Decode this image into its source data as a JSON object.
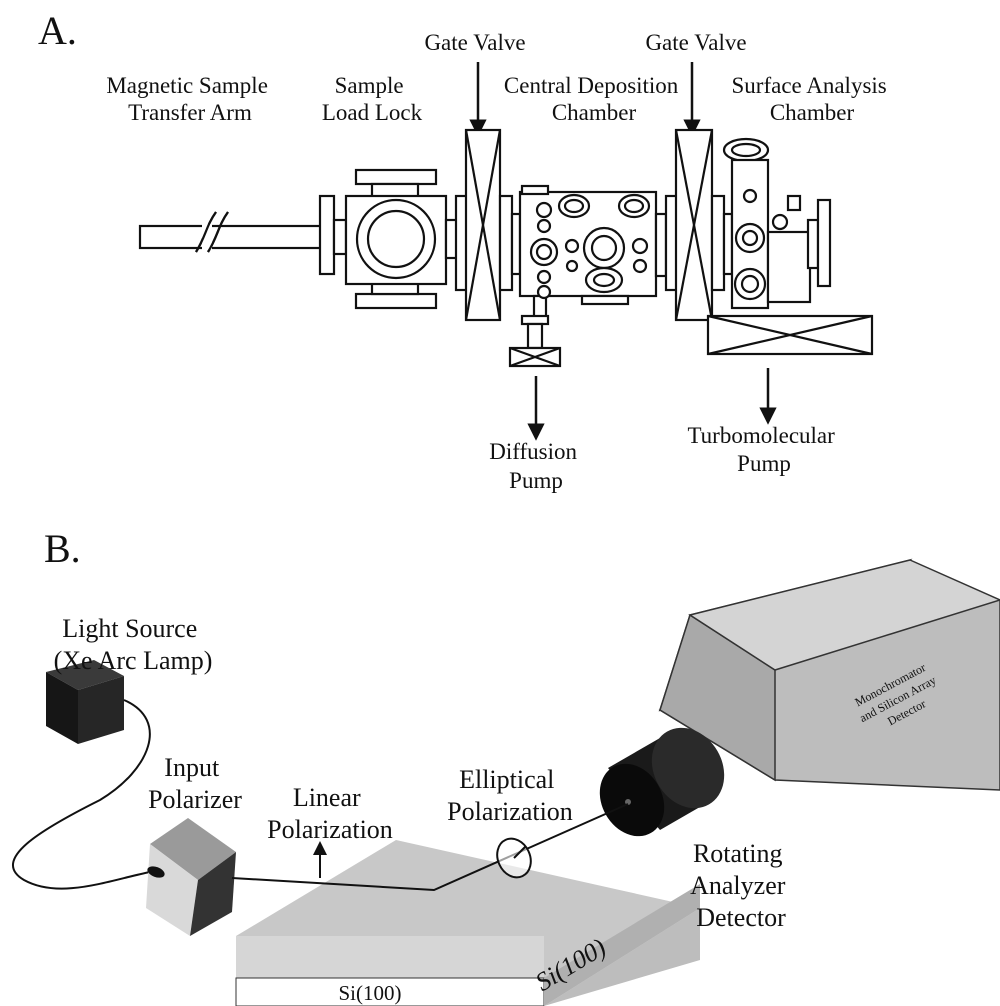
{
  "panel_a": {
    "letter": "A.",
    "labels": {
      "transfer_arm": [
        "Magnetic Sample",
        "Transfer Arm"
      ],
      "load_lock": [
        "Sample",
        "Load Lock"
      ],
      "gate_valve_1": [
        "Gate Valve"
      ],
      "deposition": [
        "Central Deposition",
        "Chamber"
      ],
      "gate_valve_2": [
        "Gate Valve"
      ],
      "analysis": [
        "Surface Analysis",
        "Chamber"
      ],
      "diffusion": [
        "Diffusion",
        "Pump"
      ],
      "turbo": [
        "Turbomolecular",
        "Pump"
      ]
    }
  },
  "panel_b": {
    "letter": "B.",
    "labels": {
      "light_source": [
        "Light Source",
        "(Xe Arc Lamp)"
      ],
      "input_polarizer": [
        "Input",
        "Polarizer"
      ],
      "linear": [
        "Linear",
        "Polarization"
      ],
      "elliptical": [
        "Elliptical",
        "Polarization"
      ],
      "analyzer": [
        "Rotating",
        "Analyzer",
        "Detector"
      ],
      "mono": [
        "Monochromator",
        "and Silicon Array",
        "Detector"
      ],
      "sample_front": "Si(100)",
      "sample_side": "Si(100)"
    }
  }
}
